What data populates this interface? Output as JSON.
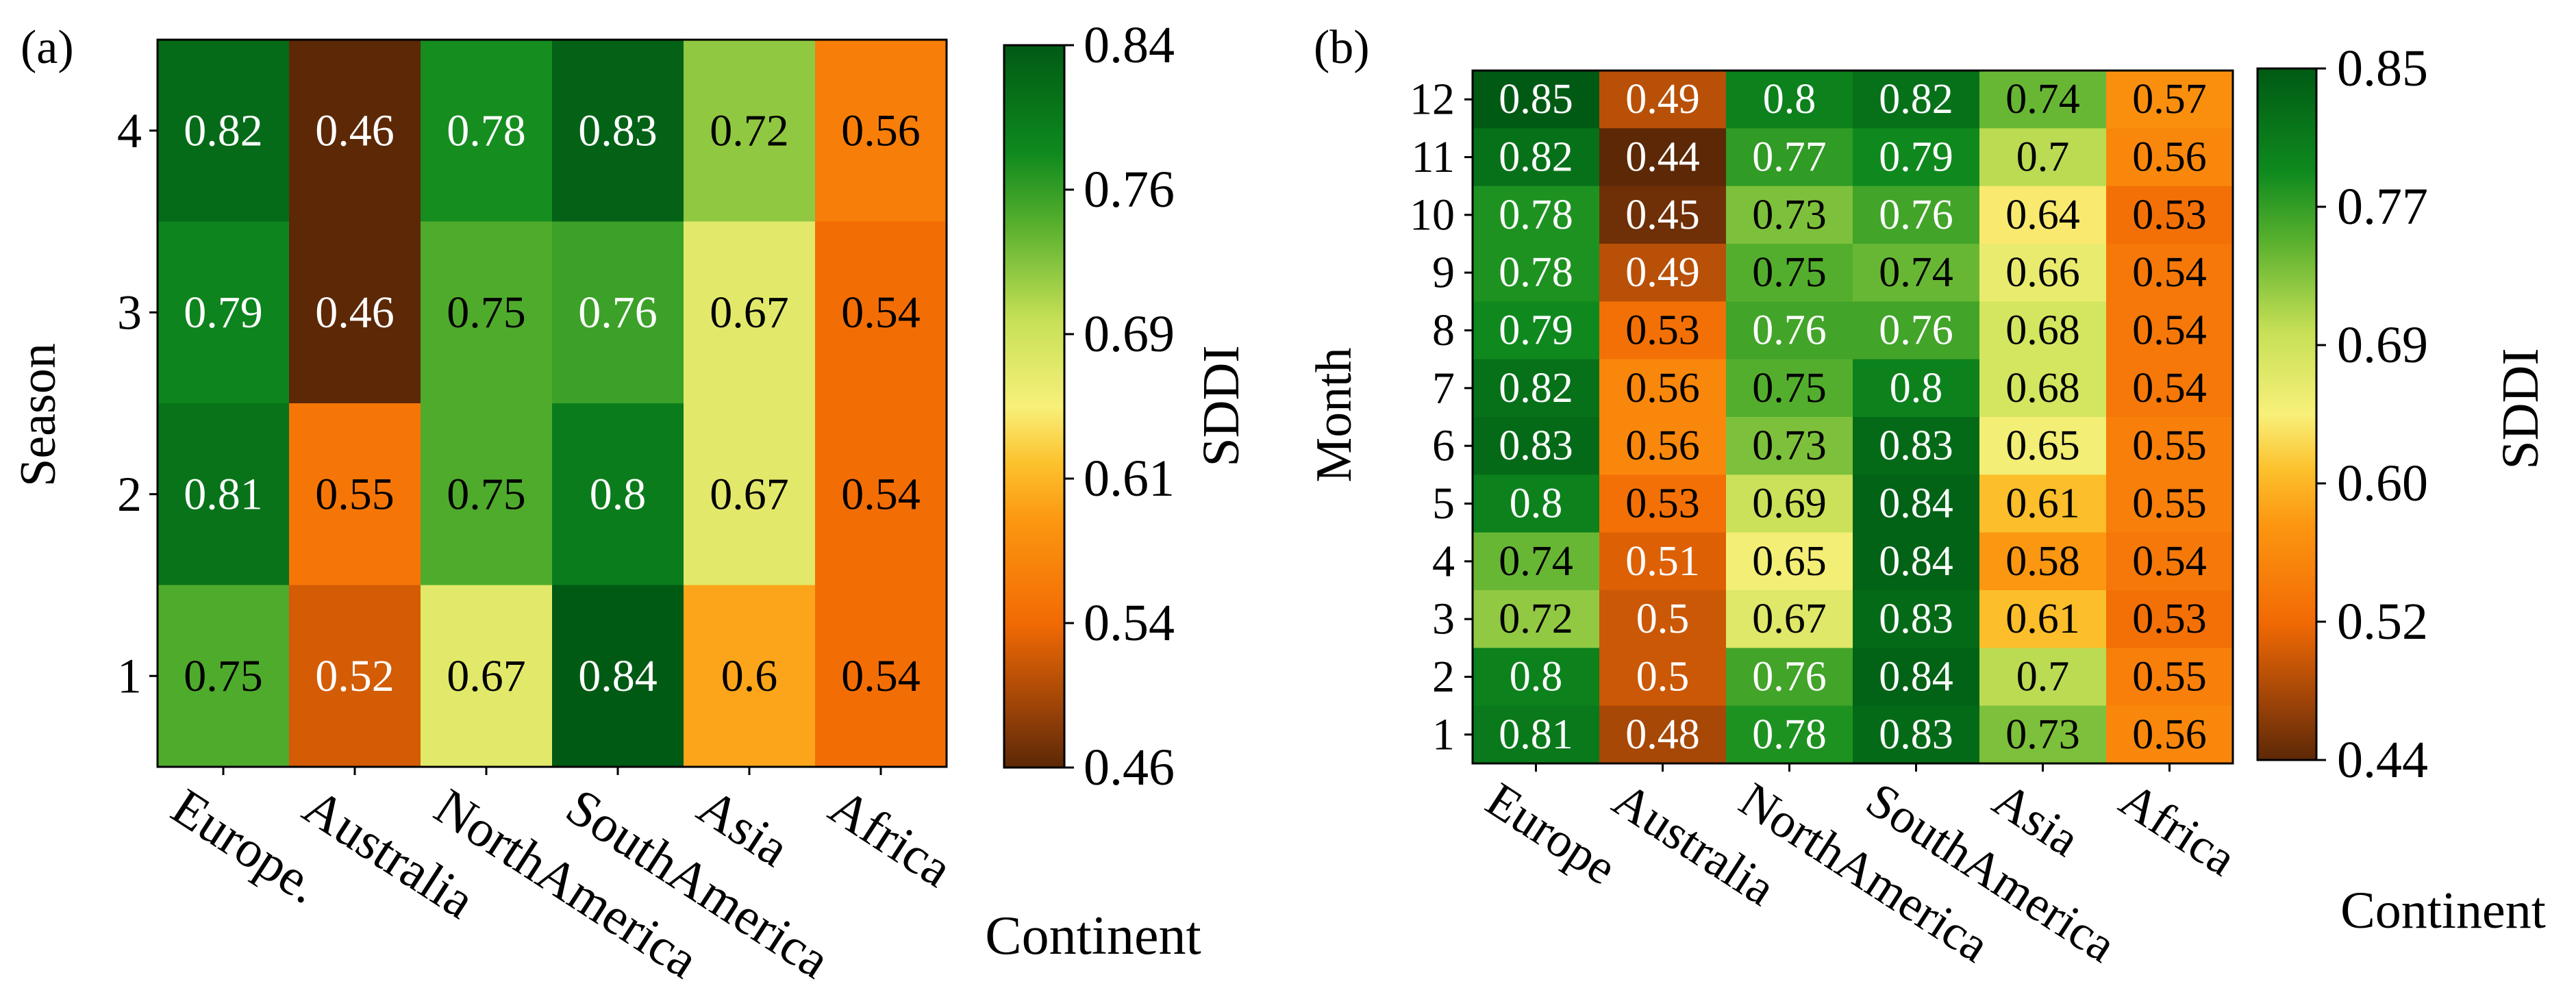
{
  "chart_data": [
    {
      "type": "heatmap",
      "panel_label": "(a)",
      "xlabel": "Continent",
      "ylabel": "Season",
      "categories": [
        "Europe.",
        "Australia",
        "NorthAmerica",
        "SouthAmerica",
        "Asia",
        "Africa"
      ],
      "rows": [
        "4",
        "3",
        "2",
        "1"
      ],
      "values": [
        [
          0.82,
          0.46,
          0.78,
          0.83,
          0.72,
          0.56
        ],
        [
          0.79,
          0.46,
          0.75,
          0.76,
          0.67,
          0.54
        ],
        [
          0.81,
          0.55,
          0.75,
          0.8,
          0.67,
          0.54
        ],
        [
          0.75,
          0.52,
          0.67,
          0.84,
          0.6,
          0.54
        ]
      ],
      "value_labels": [
        [
          "0.82",
          "0.46",
          "0.78",
          "0.83",
          "0.72",
          "0.56"
        ],
        [
          "0.79",
          "0.46",
          "0.75",
          "0.76",
          "0.67",
          "0.54"
        ],
        [
          "0.81",
          "0.55",
          "0.75",
          "0.8",
          "0.67",
          "0.54"
        ],
        [
          "0.75",
          "0.52",
          "0.67",
          "0.84",
          "0.6",
          "0.54"
        ]
      ],
      "colorbar": {
        "label": "SDDI",
        "min": 0.46,
        "max": 0.84,
        "ticks": [
          "0.84",
          "0.76",
          "0.69",
          "0.61",
          "0.54",
          "0.46"
        ]
      }
    },
    {
      "type": "heatmap",
      "panel_label": "(b)",
      "xlabel": "Continent",
      "ylabel": "Month",
      "categories": [
        "Europe",
        "Australia",
        "NorthAmerica",
        "SouthAmerica",
        "Asia",
        "Africa"
      ],
      "rows": [
        "12",
        "11",
        "10",
        "9",
        "8",
        "7",
        "6",
        "5",
        "4",
        "3",
        "2",
        "1"
      ],
      "values": [
        [
          0.85,
          0.49,
          0.8,
          0.82,
          0.74,
          0.57
        ],
        [
          0.82,
          0.44,
          0.77,
          0.79,
          0.7,
          0.56
        ],
        [
          0.78,
          0.45,
          0.73,
          0.76,
          0.64,
          0.53
        ],
        [
          0.78,
          0.49,
          0.75,
          0.74,
          0.66,
          0.54
        ],
        [
          0.79,
          0.53,
          0.76,
          0.76,
          0.68,
          0.54
        ],
        [
          0.82,
          0.56,
          0.75,
          0.8,
          0.68,
          0.54
        ],
        [
          0.83,
          0.56,
          0.73,
          0.83,
          0.65,
          0.55
        ],
        [
          0.8,
          0.53,
          0.69,
          0.84,
          0.61,
          0.55
        ],
        [
          0.74,
          0.51,
          0.65,
          0.84,
          0.58,
          0.54
        ],
        [
          0.72,
          0.5,
          0.67,
          0.83,
          0.61,
          0.53
        ],
        [
          0.8,
          0.5,
          0.76,
          0.84,
          0.7,
          0.55
        ],
        [
          0.81,
          0.48,
          0.78,
          0.83,
          0.73,
          0.56
        ]
      ],
      "value_labels": [
        [
          "0.85",
          "0.49",
          "0.8",
          "0.82",
          "0.74",
          "0.57"
        ],
        [
          "0.82",
          "0.44",
          "0.77",
          "0.79",
          "0.7",
          "0.56"
        ],
        [
          "0.78",
          "0.45",
          "0.73",
          "0.76",
          "0.64",
          "0.53"
        ],
        [
          "0.78",
          "0.49",
          "0.75",
          "0.74",
          "0.66",
          "0.54"
        ],
        [
          "0.79",
          "0.53",
          "0.76",
          "0.76",
          "0.68",
          "0.54"
        ],
        [
          "0.82",
          "0.56",
          "0.75",
          "0.8",
          "0.68",
          "0.54"
        ],
        [
          "0.83",
          "0.56",
          "0.73",
          "0.83",
          "0.65",
          "0.55"
        ],
        [
          "0.8",
          "0.53",
          "0.69",
          "0.84",
          "0.61",
          "0.55"
        ],
        [
          "0.74",
          "0.51",
          "0.65",
          "0.84",
          "0.58",
          "0.54"
        ],
        [
          "0.72",
          "0.5",
          "0.67",
          "0.83",
          "0.61",
          "0.53"
        ],
        [
          "0.8",
          "0.5",
          "0.76",
          "0.84",
          "0.7",
          "0.55"
        ],
        [
          "0.81",
          "0.48",
          "0.78",
          "0.83",
          "0.73",
          "0.56"
        ]
      ],
      "colorbar": {
        "label": "SDDI",
        "min": 0.44,
        "max": 0.85,
        "ticks": [
          "0.85",
          "0.77",
          "0.69",
          "0.60",
          "0.52",
          "0.44"
        ]
      }
    }
  ]
}
